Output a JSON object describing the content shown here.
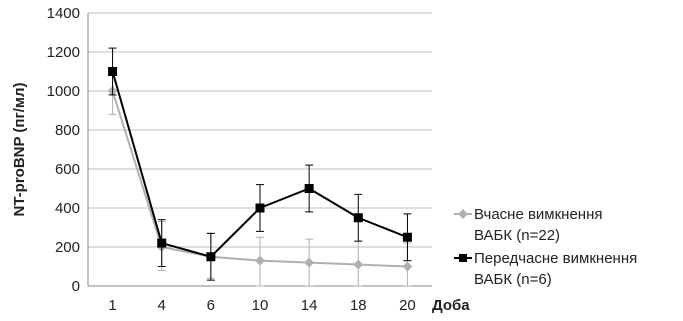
{
  "chart_data": {
    "type": "line",
    "ylabel": "NT-proBNP (пг/мл)",
    "xunit_label": "Доба",
    "ylim": [
      0,
      1400
    ],
    "yticks": [
      0,
      200,
      400,
      600,
      800,
      1000,
      1200,
      1400
    ],
    "grid": true,
    "legend_position": "right",
    "categories": [
      "1",
      "4",
      "6",
      "10",
      "14",
      "18",
      "20"
    ],
    "series": [
      {
        "name_lines": [
          "Вчасне вимкнення",
          "ВАБК (n=22)"
        ],
        "color": "#b0b0b0",
        "marker": "diamond",
        "values": [
          1000,
          200,
          150,
          130,
          120,
          110,
          100
        ],
        "err_low": [
          880,
          80,
          40,
          0,
          0,
          0,
          0
        ],
        "err_high": [
          1100,
          330,
          270,
          250,
          240,
          230,
          220
        ]
      },
      {
        "name_lines": [
          "Передчасне вимкнення",
          "ВАБК (n=6)"
        ],
        "color": "#000000",
        "marker": "square",
        "values": [
          1100,
          220,
          150,
          400,
          500,
          350,
          250
        ],
        "err_low": [
          980,
          100,
          30,
          280,
          380,
          230,
          130
        ],
        "err_high": [
          1220,
          340,
          270,
          520,
          620,
          470,
          370
        ]
      }
    ]
  }
}
